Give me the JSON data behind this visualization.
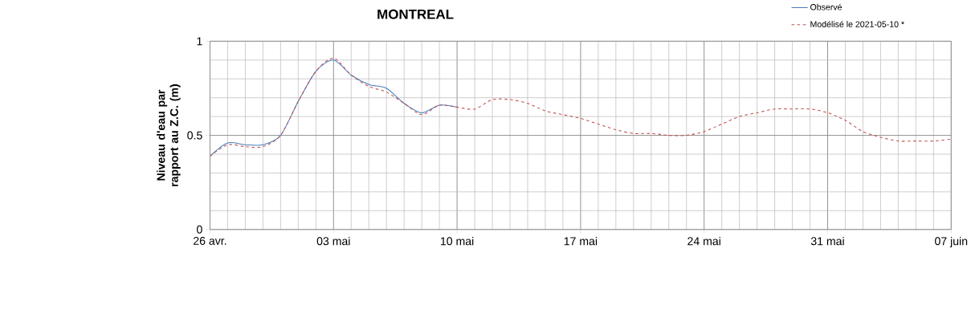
{
  "chart_data": {
    "type": "line",
    "title": "MONTREAL",
    "ylabel": "Niveau d'eau par rapport au Z.C. (m)",
    "xlim": [
      "2021-04-26",
      "2021-06-07"
    ],
    "xticks": [
      {
        "value": "2021-04-26",
        "label": "26 avr."
      },
      {
        "value": "2021-05-03",
        "label": "03 mai"
      },
      {
        "value": "2021-05-10",
        "label": "10 mai"
      },
      {
        "value": "2021-05-17",
        "label": "17 mai"
      },
      {
        "value": "2021-05-24",
        "label": "24 mai"
      },
      {
        "value": "2021-05-31",
        "label": "31 mai"
      },
      {
        "value": "2021-06-07",
        "label": "07 juin"
      }
    ],
    "ylim": [
      0,
      1
    ],
    "yticks": [
      0,
      0.5,
      1
    ],
    "grid": true,
    "legend": "top right",
    "series": [
      {
        "name": "Observé",
        "color": "#4a7ebb",
        "line_style": "solid",
        "x": [
          "2021-04-26",
          "2021-04-27",
          "2021-04-28",
          "2021-04-29",
          "2021-04-30",
          "2021-05-01",
          "2021-05-02",
          "2021-05-03",
          "2021-05-04",
          "2021-05-05",
          "2021-05-06",
          "2021-05-07",
          "2021-05-08",
          "2021-05-09",
          "2021-05-10"
        ],
        "values": [
          0.39,
          0.46,
          0.45,
          0.45,
          0.5,
          0.68,
          0.84,
          0.9,
          0.82,
          0.77,
          0.75,
          0.67,
          0.62,
          0.66,
          0.65
        ]
      },
      {
        "name": "Modélisé le 2021-05-10 *",
        "color": "#c0504d",
        "line_style": "dashed",
        "x": [
          "2021-04-26",
          "2021-04-27",
          "2021-04-28",
          "2021-04-29",
          "2021-04-30",
          "2021-05-01",
          "2021-05-02",
          "2021-05-03",
          "2021-05-04",
          "2021-05-05",
          "2021-05-06",
          "2021-05-07",
          "2021-05-08",
          "2021-05-09",
          "2021-05-10",
          "2021-05-11",
          "2021-05-12",
          "2021-05-13",
          "2021-05-14",
          "2021-05-15",
          "2021-05-16",
          "2021-05-17",
          "2021-05-18",
          "2021-05-19",
          "2021-05-20",
          "2021-05-21",
          "2021-05-22",
          "2021-05-23",
          "2021-05-24",
          "2021-05-25",
          "2021-05-26",
          "2021-05-27",
          "2021-05-28",
          "2021-05-29",
          "2021-05-30",
          "2021-05-31",
          "2021-06-01",
          "2021-06-02",
          "2021-06-03",
          "2021-06-04",
          "2021-06-05",
          "2021-06-06",
          "2021-06-07"
        ],
        "values": [
          0.39,
          0.45,
          0.44,
          0.44,
          0.5,
          0.68,
          0.84,
          0.91,
          0.82,
          0.76,
          0.73,
          0.67,
          0.61,
          0.66,
          0.65,
          0.64,
          0.69,
          0.69,
          0.67,
          0.63,
          0.61,
          0.59,
          0.56,
          0.53,
          0.51,
          0.51,
          0.5,
          0.5,
          0.52,
          0.56,
          0.6,
          0.62,
          0.64,
          0.64,
          0.64,
          0.62,
          0.58,
          0.52,
          0.49,
          0.47,
          0.47,
          0.47,
          0.48
        ]
      }
    ]
  }
}
